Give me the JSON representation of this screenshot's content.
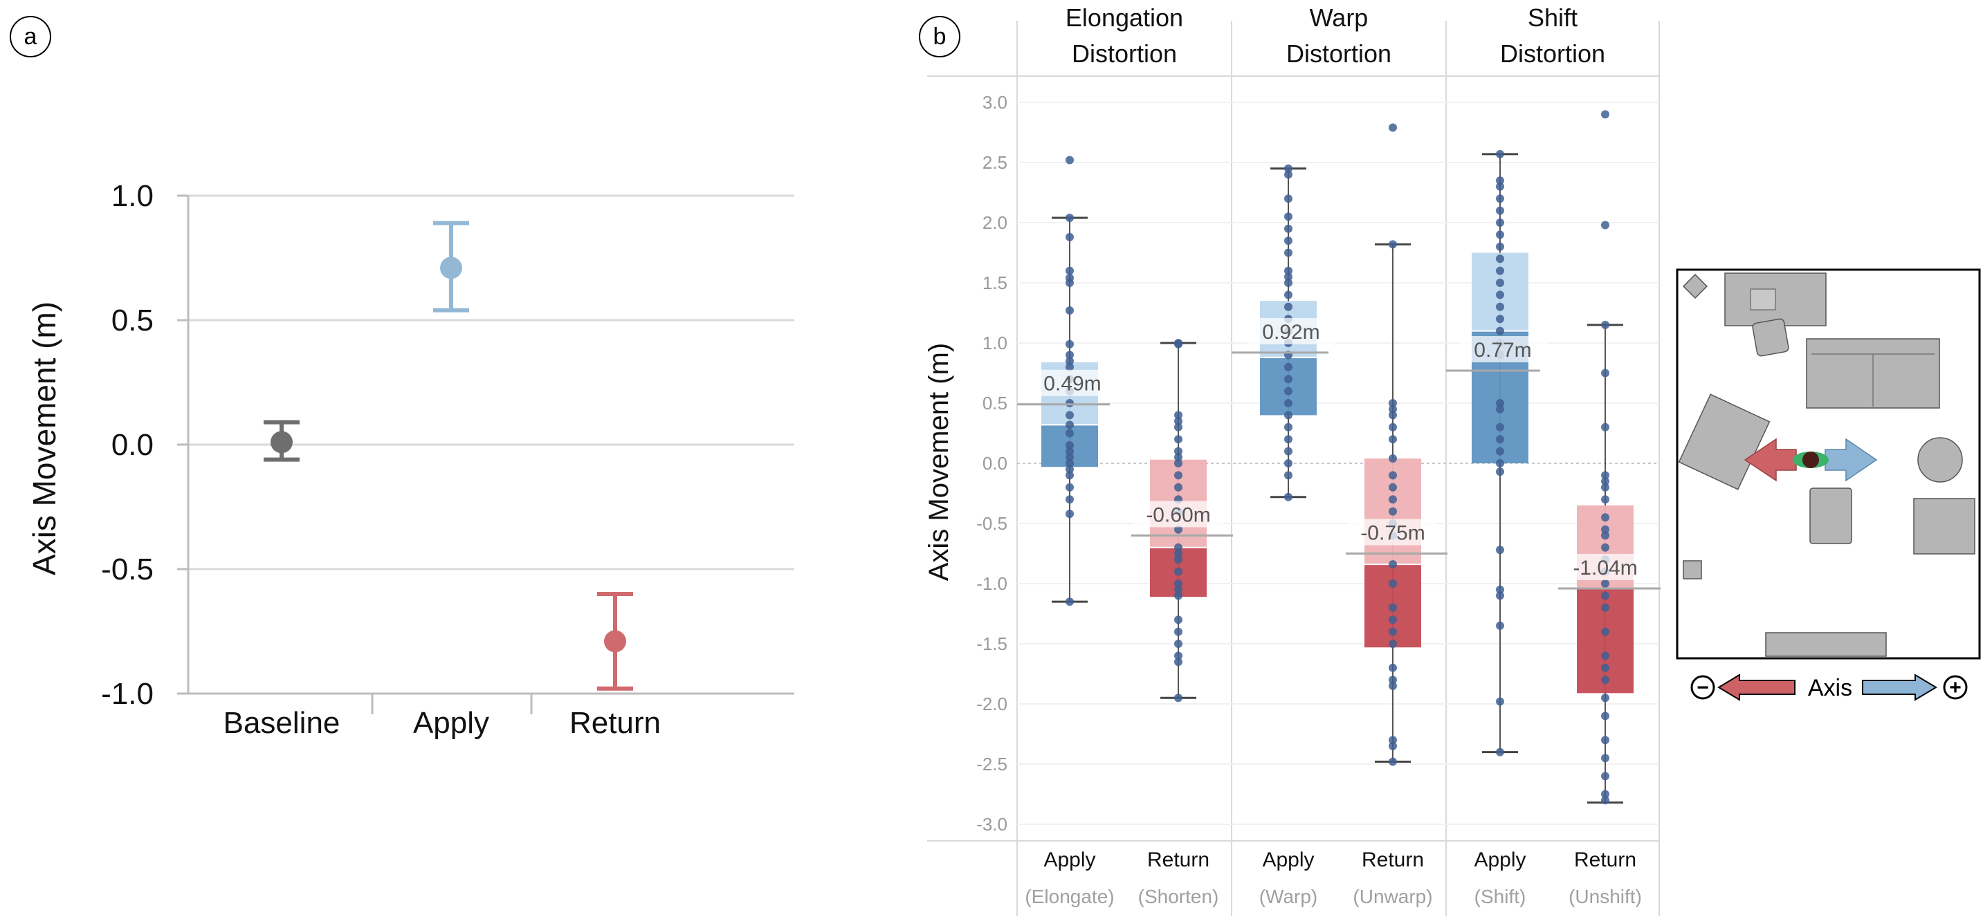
{
  "colors": {
    "baseline": "#6e6e6e",
    "apply": "#93b8d6",
    "return": "#cf6b6e",
    "apply_box_dark": "#5e93c1",
    "apply_box_light": "#bcd7ee",
    "return_box_dark": "#c44a53",
    "return_box_light": "#eeb1b4",
    "points": "#3f5f92",
    "grid": "#d9d9d9",
    "arrow_blue": "#8fb5d6",
    "arrow_red": "#cc6266",
    "furniture": "#b5b5b5"
  },
  "panel_a": {
    "label": "a",
    "chart_data": {
      "type": "scatter",
      "title": "",
      "xlabel": "",
      "ylabel": "Axis Movement (m)",
      "categories": [
        "Baseline",
        "Apply",
        "Return"
      ],
      "ylim": [
        -1.0,
        1.0
      ],
      "yticks": [
        "1.0",
        "0.5",
        "0.0",
        "-0.5",
        "-1.0"
      ],
      "ytick_values": [
        1.0,
        0.5,
        0.0,
        -0.5,
        -1.0
      ],
      "points": [
        {
          "category": "Baseline",
          "mean": 0.01,
          "lower": -0.06,
          "upper": 0.09
        },
        {
          "category": "Apply",
          "mean": 0.71,
          "lower": 0.54,
          "upper": 0.89
        },
        {
          "category": "Return",
          "mean": -0.79,
          "lower": -0.98,
          "upper": -0.6
        }
      ]
    }
  },
  "panel_b": {
    "label": "b",
    "chart_data": {
      "type": "box",
      "ylabel": "Axis Movement (m)",
      "ylim": [
        -3.0,
        3.0
      ],
      "yticks": [
        "3.0",
        "2.5",
        "2.0",
        "1.5",
        "1.0",
        "0.5",
        "0.0",
        "-0.5",
        "-1.0",
        "-1.5",
        "-2.0",
        "-2.5",
        "-3.0"
      ],
      "ytick_values": [
        3.0,
        2.5,
        2.0,
        1.5,
        1.0,
        0.5,
        0.0,
        -0.5,
        -1.0,
        -1.5,
        -2.0,
        -2.5,
        -3.0
      ],
      "groups": [
        {
          "title_line1": "Elongation",
          "title_line2": "Distortion",
          "boxes": [
            {
              "label": "Apply",
              "sublabel": "(Elongate)",
              "kind": "apply",
              "min": -1.15,
              "q1": -0.03,
              "median": 0.32,
              "q3": 0.84,
              "max": 2.04,
              "mean": 0.49,
              "mean_label": "0.49m",
              "points": [
                2.52,
                2.04,
                1.88,
                1.6,
                1.54,
                1.5,
                1.27,
                0.99,
                0.9,
                0.85,
                0.8,
                0.7,
                0.6,
                0.5,
                0.4,
                0.32,
                0.25,
                0.15,
                0.1,
                0.05,
                0.0,
                -0.05,
                -0.1,
                -0.2,
                -0.3,
                -0.42,
                -1.15
              ]
            },
            {
              "label": "Return",
              "sublabel": "(Shorten)",
              "kind": "return",
              "min": -1.95,
              "q1": -1.11,
              "median": -0.7,
              "q3": 0.03,
              "max": 1.0,
              "mean": -0.6,
              "mean_label": "-0.60m",
              "points": [
                1.0,
                0.99,
                0.4,
                0.35,
                0.3,
                0.2,
                0.1,
                0.05,
                0.0,
                -0.1,
                -0.2,
                -0.3,
                -0.4,
                -0.55,
                -0.7,
                -0.75,
                -0.8,
                -0.9,
                -1.0,
                -1.05,
                -1.1,
                -1.3,
                -1.4,
                -1.5,
                -1.6,
                -1.65,
                -1.95
              ]
            }
          ]
        },
        {
          "title_line1": "Warp",
          "title_line2": "Distortion",
          "boxes": [
            {
              "label": "Apply",
              "sublabel": "(Warp)",
              "kind": "apply",
              "min": -0.28,
              "q1": 0.4,
              "median": 0.88,
              "q3": 1.35,
              "max": 2.45,
              "mean": 0.92,
              "mean_label": "0.92m",
              "points": [
                2.45,
                2.4,
                2.2,
                2.05,
                1.95,
                1.85,
                1.75,
                1.6,
                1.55,
                1.5,
                1.4,
                1.3,
                1.2,
                1.1,
                1.0,
                0.9,
                0.8,
                0.7,
                0.6,
                0.5,
                0.4,
                0.3,
                0.2,
                0.1,
                0.0,
                -0.1,
                -0.28
              ]
            },
            {
              "label": "Return",
              "sublabel": "(Unwarp)",
              "kind": "return",
              "min": -2.48,
              "q1": -1.53,
              "median": -0.84,
              "q3": 0.04,
              "max": 1.82,
              "mean": -0.75,
              "mean_label": "-0.75m",
              "points": [
                2.79,
                1.82,
                0.5,
                0.45,
                0.4,
                0.3,
                0.2,
                0.04,
                -0.1,
                -0.2,
                -0.3,
                -0.4,
                -0.5,
                -0.6,
                -0.84,
                -1.0,
                -1.2,
                -1.3,
                -1.4,
                -1.5,
                -1.7,
                -1.8,
                -1.85,
                -2.3,
                -2.35,
                -2.48
              ]
            }
          ]
        },
        {
          "title_line1": "Shift",
          "title_line2": "Distortion",
          "boxes": [
            {
              "label": "Apply",
              "sublabel": "(Shift)",
              "kind": "apply",
              "min": -2.4,
              "q1": 0.0,
              "median": 1.1,
              "q3": 1.75,
              "max": 2.57,
              "mean": 0.77,
              "mean_label": "0.77m",
              "points": [
                2.57,
                2.35,
                2.3,
                2.2,
                2.1,
                2.0,
                1.9,
                1.8,
                1.7,
                1.6,
                1.5,
                1.4,
                1.3,
                1.2,
                1.1,
                1.0,
                0.9,
                0.5,
                0.45,
                0.3,
                0.2,
                0.1,
                0.0,
                -0.07,
                -0.72,
                -1.05,
                -1.1,
                -1.35,
                -1.98,
                -2.4
              ]
            },
            {
              "label": "Return",
              "sublabel": "(Unshift)",
              "kind": "return",
              "min": -2.82,
              "q1": -1.91,
              "median": -1.04,
              "q3": -0.35,
              "max": 1.15,
              "mean": -1.04,
              "mean_label": "-1.04m",
              "points": [
                2.9,
                1.98,
                1.15,
                0.75,
                0.3,
                -0.1,
                -0.15,
                -0.2,
                -0.3,
                -0.45,
                -0.55,
                -0.6,
                -0.7,
                -0.8,
                -0.9,
                -1.0,
                -1.1,
                -1.2,
                -1.4,
                -1.6,
                -1.7,
                -1.8,
                -1.95,
                -2.1,
                -2.3,
                -2.45,
                -2.6,
                -2.75,
                -2.8
              ]
            }
          ]
        }
      ]
    }
  },
  "legend": {
    "axis_label": "Axis",
    "minus_symbol": "−",
    "plus_symbol": "+"
  }
}
